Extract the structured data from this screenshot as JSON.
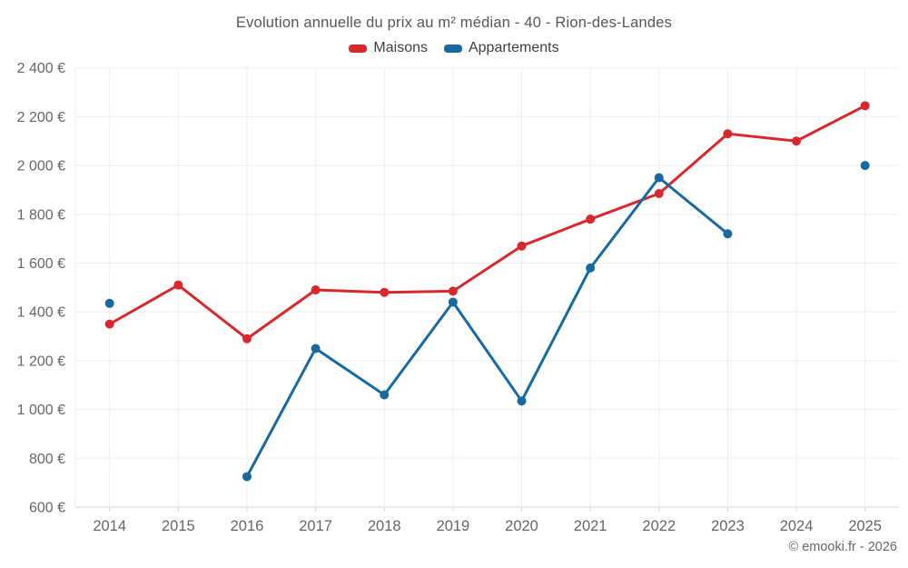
{
  "title": "Evolution annuelle du prix au m² médian - 40 - Rion-des-Landes",
  "legend": {
    "items": [
      {
        "label": "Maisons",
        "color": "#d7282d"
      },
      {
        "label": "Appartements",
        "color": "#17699f"
      }
    ]
  },
  "footer": {
    "credit": "© emooki.fr - 2026"
  },
  "chart_data": {
    "type": "line",
    "title": "Evolution annuelle du prix au m² médian - 40 - Rion-des-Landes",
    "xlabel": "",
    "ylabel": "",
    "x": [
      "2014",
      "2015",
      "2016",
      "2017",
      "2018",
      "2019",
      "2020",
      "2021",
      "2022",
      "2023",
      "2024",
      "2025"
    ],
    "series": [
      {
        "name": "Maisons",
        "color": "#d7282d",
        "values": [
          1350,
          1510,
          1290,
          1490,
          1480,
          1485,
          1670,
          1780,
          1885,
          2130,
          2100,
          2245
        ]
      },
      {
        "name": "Appartements",
        "color": "#17699f",
        "values": [
          1435,
          null,
          725,
          1250,
          1060,
          1440,
          1035,
          1580,
          1950,
          1720,
          null,
          2000
        ]
      }
    ],
    "ylim": [
      600,
      2400
    ],
    "ytick_step": 200,
    "ytick_suffix": " €",
    "grid": true,
    "legend_position": "top",
    "marker_radius": 5,
    "line_width": 3,
    "grid_color": "#ededed",
    "axis_line_color": "#d4d4d4",
    "tick_text_color": "#666666"
  }
}
